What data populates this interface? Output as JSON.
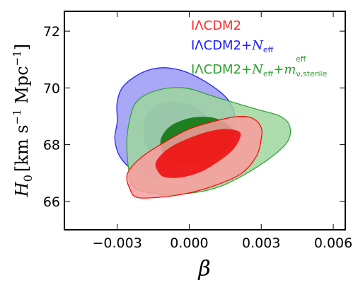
{
  "chart_data": {
    "type": "contour",
    "xlabel": "β",
    "ylabel": {
      "symbol": "H",
      "sub": "0",
      "unit_prefix": "[km s",
      "unit_exp1": "−1",
      "unit_mid": " Mpc",
      "unit_exp2": "−1",
      "unit_suffix": "]"
    },
    "xlim": [
      -0.0052,
      0.0065
    ],
    "ylim": [
      65.0,
      72.7
    ],
    "x_ticks": [
      -0.003,
      0.0,
      0.003,
      0.006
    ],
    "x_tick_labels": [
      "−0.003",
      "0.000",
      "0.003",
      "0.006"
    ],
    "y_ticks": [
      66,
      68,
      70,
      72
    ],
    "y_tick_labels": [
      "66",
      "68",
      "70",
      "72"
    ],
    "legend_position": "top-right",
    "series": [
      {
        "name": "IΛCDM2",
        "legend": {
          "main": "IΛCDM2"
        },
        "color": "#ff0000",
        "outer_fill": "#f99c9c",
        "inner_fill": "#ee1111",
        "outer": [
          [
            -0.0025,
            66.5
          ],
          [
            -0.0022,
            66.15
          ],
          [
            -0.0012,
            66.15
          ],
          [
            0.0,
            66.3
          ],
          [
            0.0012,
            66.6
          ],
          [
            0.0022,
            67.0
          ],
          [
            0.0028,
            67.6
          ],
          [
            0.003,
            68.2
          ],
          [
            0.003,
            68.6
          ],
          [
            0.0027,
            68.9
          ],
          [
            0.0022,
            69.0
          ],
          [
            0.0014,
            68.9
          ],
          [
            0.0,
            68.55
          ],
          [
            -0.0012,
            68.0
          ],
          [
            -0.002,
            67.55
          ],
          [
            -0.0025,
            67.1
          ],
          [
            -0.0026,
            66.8
          ]
        ],
        "inner": [
          [
            -0.0013,
            67.05
          ],
          [
            -0.001,
            66.85
          ],
          [
            -0.0003,
            66.85
          ],
          [
            0.0005,
            67.05
          ],
          [
            0.0012,
            67.4
          ],
          [
            0.0018,
            67.8
          ],
          [
            0.0021,
            68.2
          ],
          [
            0.0021,
            68.45
          ],
          [
            0.0016,
            68.55
          ],
          [
            0.001,
            68.5
          ],
          [
            0.0002,
            68.3
          ],
          [
            -0.0006,
            68.0
          ],
          [
            -0.0011,
            67.7
          ],
          [
            -0.0014,
            67.35
          ]
        ]
      },
      {
        "name": "IΛCDM2+Neff",
        "legend": {
          "main": "IΛCDM2+",
          "sym": "N",
          "sub": "eff"
        },
        "color": "#1a1aff",
        "outer_fill": "#9999f5",
        "inner_fill": "#7070e6",
        "outer": [
          [
            -0.003,
            68.8
          ],
          [
            -0.0031,
            68.2
          ],
          [
            -0.0029,
            67.6
          ],
          [
            -0.0024,
            67.15
          ],
          [
            -0.0016,
            66.9
          ],
          [
            -0.0005,
            66.9
          ],
          [
            0.0005,
            67.15
          ],
          [
            0.0013,
            67.6
          ],
          [
            0.0017,
            68.3
          ],
          [
            0.0019,
            69.0
          ],
          [
            0.0015,
            69.7
          ],
          [
            0.0003,
            70.4
          ],
          [
            -0.0008,
            70.7
          ],
          [
            -0.0018,
            70.6
          ],
          [
            -0.0027,
            70.1
          ],
          [
            -0.003,
            69.5
          ]
        ],
        "inner": [
          [
            -0.0019,
            68.4
          ],
          [
            -0.0017,
            67.8
          ],
          [
            -0.0011,
            67.45
          ],
          [
            -0.0002,
            67.5
          ],
          [
            0.0006,
            67.9
          ],
          [
            0.0009,
            68.6
          ],
          [
            0.0005,
            69.2
          ],
          [
            -0.0004,
            69.5
          ],
          [
            -0.0012,
            69.45
          ],
          [
            -0.0018,
            69.0
          ]
        ]
      },
      {
        "name": "IΛCDM2+Neff+mν,sterileeff",
        "legend": {
          "main": "IΛCDM2+",
          "sym": "N",
          "sub": "eff",
          "plus": "+",
          "sym2": "m",
          "sub2": "ν,sterile",
          "sup2": "eff"
        },
        "color": "#2ca02c",
        "outer_fill": "#9fd69f",
        "inner_fill": "#117711",
        "outer": [
          [
            -0.0025,
            67.0
          ],
          [
            -0.0023,
            66.5
          ],
          [
            -0.0016,
            66.3
          ],
          [
            -0.0004,
            66.25
          ],
          [
            0.0012,
            66.5
          ],
          [
            0.0028,
            67.2
          ],
          [
            0.004,
            68.0
          ],
          [
            0.0042,
            68.6
          ],
          [
            0.0038,
            69.0
          ],
          [
            0.0028,
            69.25
          ],
          [
            0.0012,
            69.65
          ],
          [
            -0.0002,
            70.0
          ],
          [
            -0.0014,
            69.9
          ],
          [
            -0.0022,
            69.5
          ],
          [
            -0.0025,
            68.8
          ],
          [
            -0.0026,
            68.0
          ]
        ],
        "inner": [
          [
            -0.0012,
            68.0
          ],
          [
            -0.001,
            67.55
          ],
          [
            -0.0004,
            67.3
          ],
          [
            0.0006,
            67.35
          ],
          [
            0.0014,
            67.75
          ],
          [
            0.0019,
            68.25
          ],
          [
            0.0017,
            68.65
          ],
          [
            0.001,
            68.95
          ],
          [
            0.0001,
            68.95
          ],
          [
            -0.0007,
            68.7
          ],
          [
            -0.0011,
            68.35
          ]
        ]
      }
    ]
  }
}
